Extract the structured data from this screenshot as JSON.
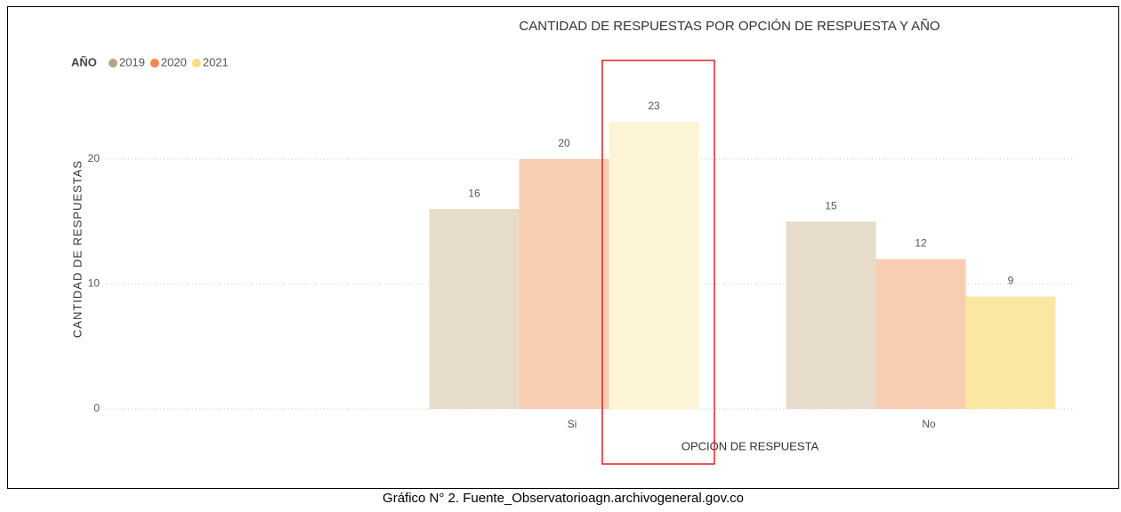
{
  "chart_data": {
    "type": "bar",
    "title": "CANTIDAD DE RESPUESTAS POR OPCIÓN DE RESPUESTA Y AÑO",
    "legend_title": "AÑO",
    "x_label": "OPCIÓN DE RESPUESTA",
    "y_label": "CANTIDAD DE RESPUESTAS",
    "categories": [
      "Si",
      "No"
    ],
    "series": [
      {
        "name": "2019",
        "color": "#b9a37e",
        "bar_colors": [
          "#e6dcc9",
          "#e6dcc9"
        ],
        "values": [
          16,
          15
        ]
      },
      {
        "name": "2020",
        "color": "#f08a4b",
        "bar_colors": [
          "#f8ceb3",
          "#f8ceb3"
        ],
        "values": [
          20,
          12
        ]
      },
      {
        "name": "2021",
        "color": "#f6df83",
        "bar_colors": [
          "#fdf4d5",
          "#f9e7a2"
        ],
        "values": [
          23,
          9
        ]
      }
    ],
    "ylim": [
      0,
      25
    ],
    "yticks": [
      0,
      10,
      20
    ],
    "grid": true,
    "legend": "top-left"
  },
  "caption": "Gráfico N° 2. Fuente_Observatorioagn.archivogeneral.gov.co"
}
